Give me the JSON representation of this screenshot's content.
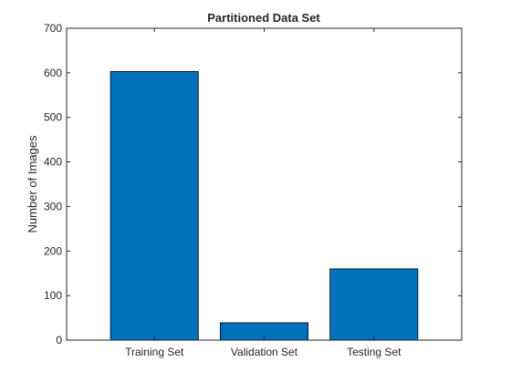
{
  "chart_data": {
    "type": "bar",
    "title": "Partitioned Data Set",
    "xlabel": "",
    "ylabel": "Number of Images",
    "categories": [
      "Training Set",
      "Validation Set",
      "Testing Set"
    ],
    "values": [
      603,
      39,
      160
    ],
    "ylim": [
      0,
      700
    ],
    "yticks": [
      0,
      100,
      200,
      300,
      400,
      500,
      600,
      700
    ],
    "grid": false,
    "bar_color": "#0072BD",
    "bar_edge_color": "#000000"
  }
}
